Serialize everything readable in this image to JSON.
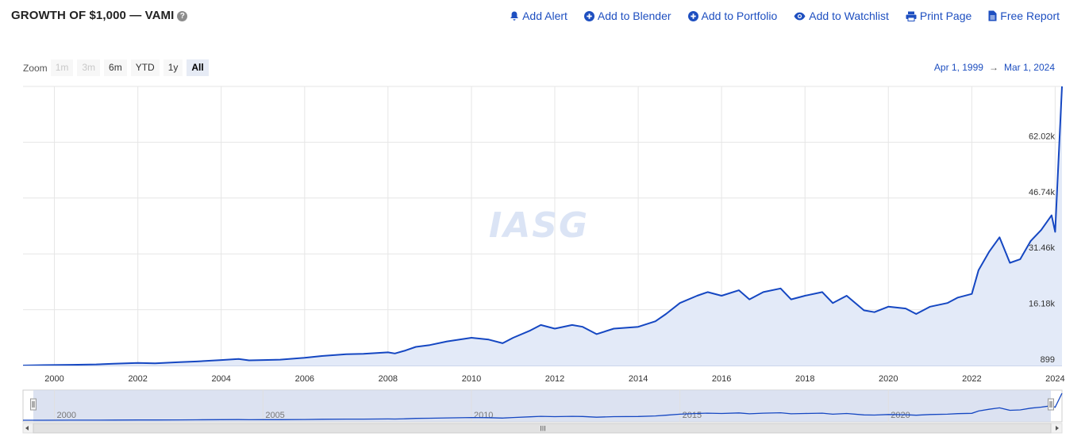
{
  "header": {
    "title": "GROWTH OF $1,000 — VAMI",
    "help_icon": "?"
  },
  "actions": [
    {
      "label": "Add Alert",
      "icon": "bell-icon"
    },
    {
      "label": "Add to Blender",
      "icon": "plus-circle-icon"
    },
    {
      "label": "Add to Portfolio",
      "icon": "plus-circle-icon"
    },
    {
      "label": "Add to Watchlist",
      "icon": "eye-icon"
    },
    {
      "label": "Print Page",
      "icon": "printer-icon"
    },
    {
      "label": "Free Report",
      "icon": "document-icon"
    }
  ],
  "zoom": {
    "label": "Zoom",
    "buttons": [
      {
        "label": "1m",
        "state": "disabled"
      },
      {
        "label": "3m",
        "state": "disabled"
      },
      {
        "label": "6m",
        "state": "normal"
      },
      {
        "label": "YTD",
        "state": "normal"
      },
      {
        "label": "1y",
        "state": "normal"
      },
      {
        "label": "All",
        "state": "active"
      }
    ]
  },
  "range": {
    "from": "Apr 1, 1999",
    "separator": "→",
    "to": "Mar 1, 2024"
  },
  "watermark": "IASG",
  "navigator": {
    "labels": [
      "2000",
      "2005",
      "2010",
      "2015",
      "2020"
    ],
    "scrollbar_grip": "III"
  },
  "colors": {
    "accent": "#1e4fc0",
    "line": "#1547c2",
    "area_fill": "#e3eaf8",
    "grid": "#e6e6e6",
    "navigator_mask": "#d0d8ec"
  },
  "chart_data": {
    "type": "area",
    "title": "",
    "xlabel": "",
    "ylabel": "",
    "x_range": [
      "1999-04-01",
      "2024-03-01"
    ],
    "y_range": [
      899,
      77300
    ],
    "x_ticks": [
      "2000",
      "2002",
      "2004",
      "2006",
      "2008",
      "2010",
      "2012",
      "2014",
      "2016",
      "2018",
      "2020",
      "2022",
      "2024"
    ],
    "y_ticks": [
      "899",
      "16.18k",
      "31.46k",
      "46.74k",
      "62.02k"
    ],
    "y_tick_values": [
      899,
      16180,
      31460,
      46740,
      62020
    ],
    "grid": true,
    "series": [
      {
        "x": [
          "1999-04",
          "1999-10",
          "2000-06",
          "2001-01",
          "2001-06",
          "2002-01",
          "2002-06",
          "2003-01",
          "2003-06",
          "2004-01",
          "2004-06",
          "2004-09",
          "2005-01",
          "2005-06",
          "2006-01",
          "2006-06",
          "2007-01",
          "2007-06",
          "2008-01",
          "2008-03",
          "2008-06",
          "2008-09",
          "2009-01",
          "2009-06",
          "2010-01",
          "2010-06",
          "2010-10",
          "2011-01",
          "2011-06",
          "2011-09",
          "2012-01",
          "2012-06",
          "2012-09",
          "2013-01",
          "2013-06",
          "2014-01",
          "2014-06",
          "2014-09",
          "2015-01",
          "2015-06",
          "2015-09",
          "2016-01",
          "2016-06",
          "2016-09",
          "2017-01",
          "2017-06",
          "2017-09",
          "2018-01",
          "2018-06",
          "2018-09",
          "2019-01",
          "2019-06",
          "2019-09",
          "2020-01",
          "2020-06",
          "2020-09",
          "2021-01",
          "2021-06",
          "2021-09",
          "2022-01",
          "2022-03",
          "2022-06",
          "2022-09",
          "2022-12",
          "2023-03",
          "2023-06",
          "2023-09",
          "2023-12",
          "2024-01",
          "2024-03"
        ],
        "y": [
          900,
          1000,
          1100,
          1200,
          1400,
          1600,
          1500,
          1800,
          2000,
          2400,
          2700,
          2300,
          2400,
          2500,
          3000,
          3500,
          4000,
          4100,
          4500,
          4200,
          5000,
          6000,
          6500,
          7500,
          8500,
          8000,
          7000,
          8500,
          10500,
          12000,
          11000,
          12000,
          11500,
          9500,
          11000,
          11500,
          13000,
          15000,
          18000,
          20000,
          21000,
          20000,
          21500,
          19000,
          21000,
          22000,
          19000,
          20000,
          21000,
          18000,
          20000,
          16000,
          15500,
          17000,
          16500,
          15000,
          17000,
          18000,
          19500,
          20500,
          27000,
          32000,
          36000,
          29000,
          30000,
          35000,
          38000,
          42000,
          37500,
          77300
        ]
      }
    ]
  }
}
